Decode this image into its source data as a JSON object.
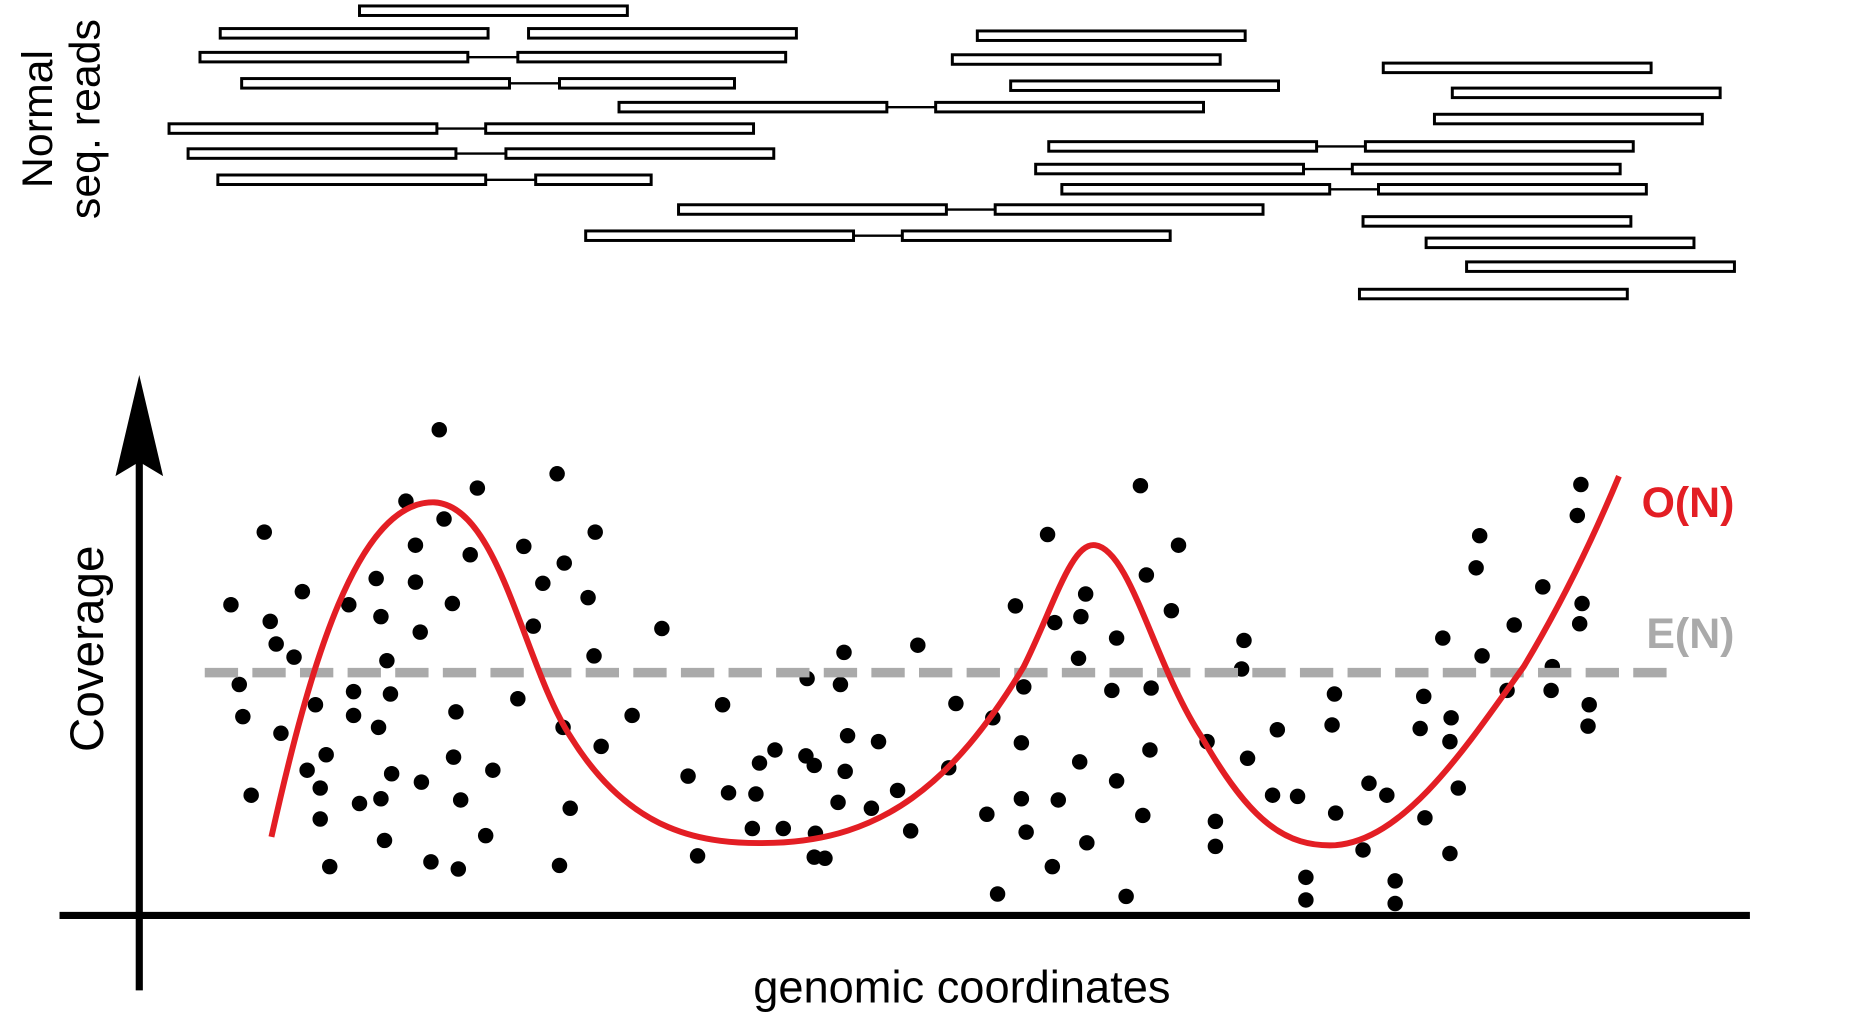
{
  "reads_panel": {
    "label_line1": "Normal",
    "label_line2": "seq. reads"
  },
  "coverage_plot": {
    "y_axis_label": "Coverage",
    "x_axis_label": "genomic coordinates",
    "observed_label": "O(N)",
    "expected_label": "E(N)"
  }
}
